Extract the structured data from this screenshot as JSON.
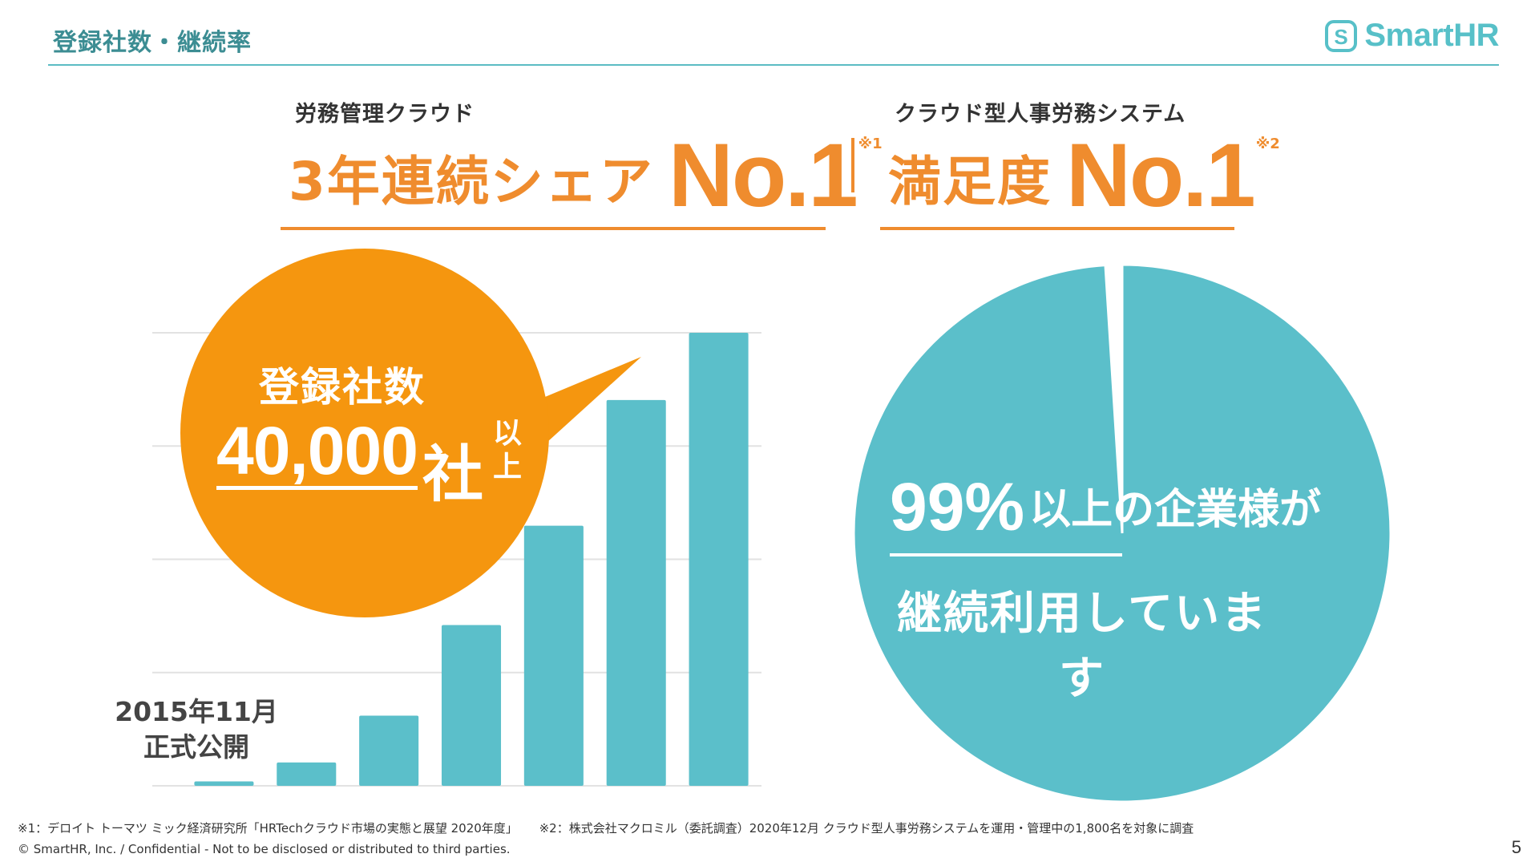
{
  "header": {
    "title": "登録社数・継続率",
    "brand": "SmartHR"
  },
  "claims": [
    {
      "subtitle": "労務管理クラウド",
      "headline": "3年連続シェア",
      "rank": "No.1",
      "note": "※1"
    },
    {
      "subtitle": "クラウド型人事労務システム",
      "headline": "満足度",
      "rank": "No.1",
      "note": "※2"
    }
  ],
  "bubble": {
    "title": "登録社数",
    "count": "40,000",
    "unit": "社",
    "suffix": "以上"
  },
  "launch": {
    "date": "2015年11月",
    "label": "正式公開"
  },
  "pie_text": {
    "percent": "99%",
    "line1_rest": "以上の企業様が",
    "line2": "継続利用しています"
  },
  "footnotes": {
    "note1": "※1：デロイト トーマツ ミック経済研究所「HRTechクラウド市場の実態と展望 2020年度」",
    "note2": "※2：株式会社マクロミル（委託調査）2020年12月 クラウド型人事労務システムを運用・管理中の1,800名を対象に調査"
  },
  "footer": {
    "copyright": "© SmartHR, Inc. / Confidential - Not to be disclosed or distributed to third parties.",
    "page_number": "5"
  },
  "colors": {
    "accent_orange": "#ef8c2e",
    "bubble_orange": "#f5960f",
    "teal": "#5bbfca",
    "grid": "#e2e2e2"
  },
  "chart_data": [
    {
      "type": "bar",
      "categories": [
        "",
        "",
        "",
        "",
        "",
        "",
        ""
      ],
      "values": [
        1.5,
        8,
        24,
        55,
        89,
        132,
        155
      ],
      "ylim": [
        0,
        155
      ],
      "grid": true,
      "gridlines": [
        0,
        38.75,
        77.5,
        116.25,
        155
      ],
      "legend": "none"
    },
    {
      "type": "pie",
      "labels": [
        "継続利用",
        ""
      ],
      "values": [
        99,
        1
      ],
      "legend": "none"
    }
  ]
}
